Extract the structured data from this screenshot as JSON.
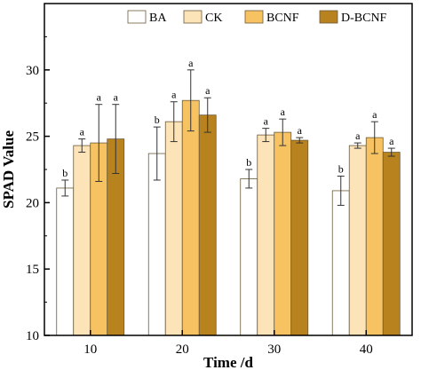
{
  "chart_data": {
    "type": "bar",
    "xlabel": "Time /d",
    "ylabel": "SPAD Value",
    "categories": [
      "10",
      "20",
      "30",
      "40"
    ],
    "ylim": [
      10,
      35
    ],
    "yticks": [
      "10",
      "15",
      "20",
      "25",
      "30"
    ],
    "legend_position": "top",
    "series": [
      {
        "name": "BA",
        "color": "#ffffff",
        "values": [
          21.1,
          23.7,
          21.8,
          20.9
        ],
        "errors": [
          0.6,
          2.0,
          0.7,
          1.1
        ],
        "labels": [
          "b",
          "b",
          "b",
          "b"
        ]
      },
      {
        "name": "CK",
        "color": "#fde3b8",
        "values": [
          24.3,
          26.1,
          25.1,
          24.3
        ],
        "errors": [
          0.5,
          1.5,
          0.5,
          0.2
        ],
        "labels": [
          "a",
          "a",
          "a",
          "a"
        ]
      },
      {
        "name": "BCNF",
        "color": "#f7c362",
        "values": [
          24.5,
          27.7,
          25.3,
          24.9
        ],
        "errors": [
          2.9,
          2.3,
          1.0,
          1.2
        ],
        "labels": [
          "a",
          "a",
          "a",
          "a"
        ]
      },
      {
        "name": "D-BCNF",
        "color": "#b8821f",
        "values": [
          24.8,
          26.6,
          24.7,
          23.8
        ],
        "errors": [
          2.6,
          1.3,
          0.2,
          0.3
        ],
        "labels": [
          "a",
          "a",
          "a",
          "a"
        ]
      }
    ]
  }
}
